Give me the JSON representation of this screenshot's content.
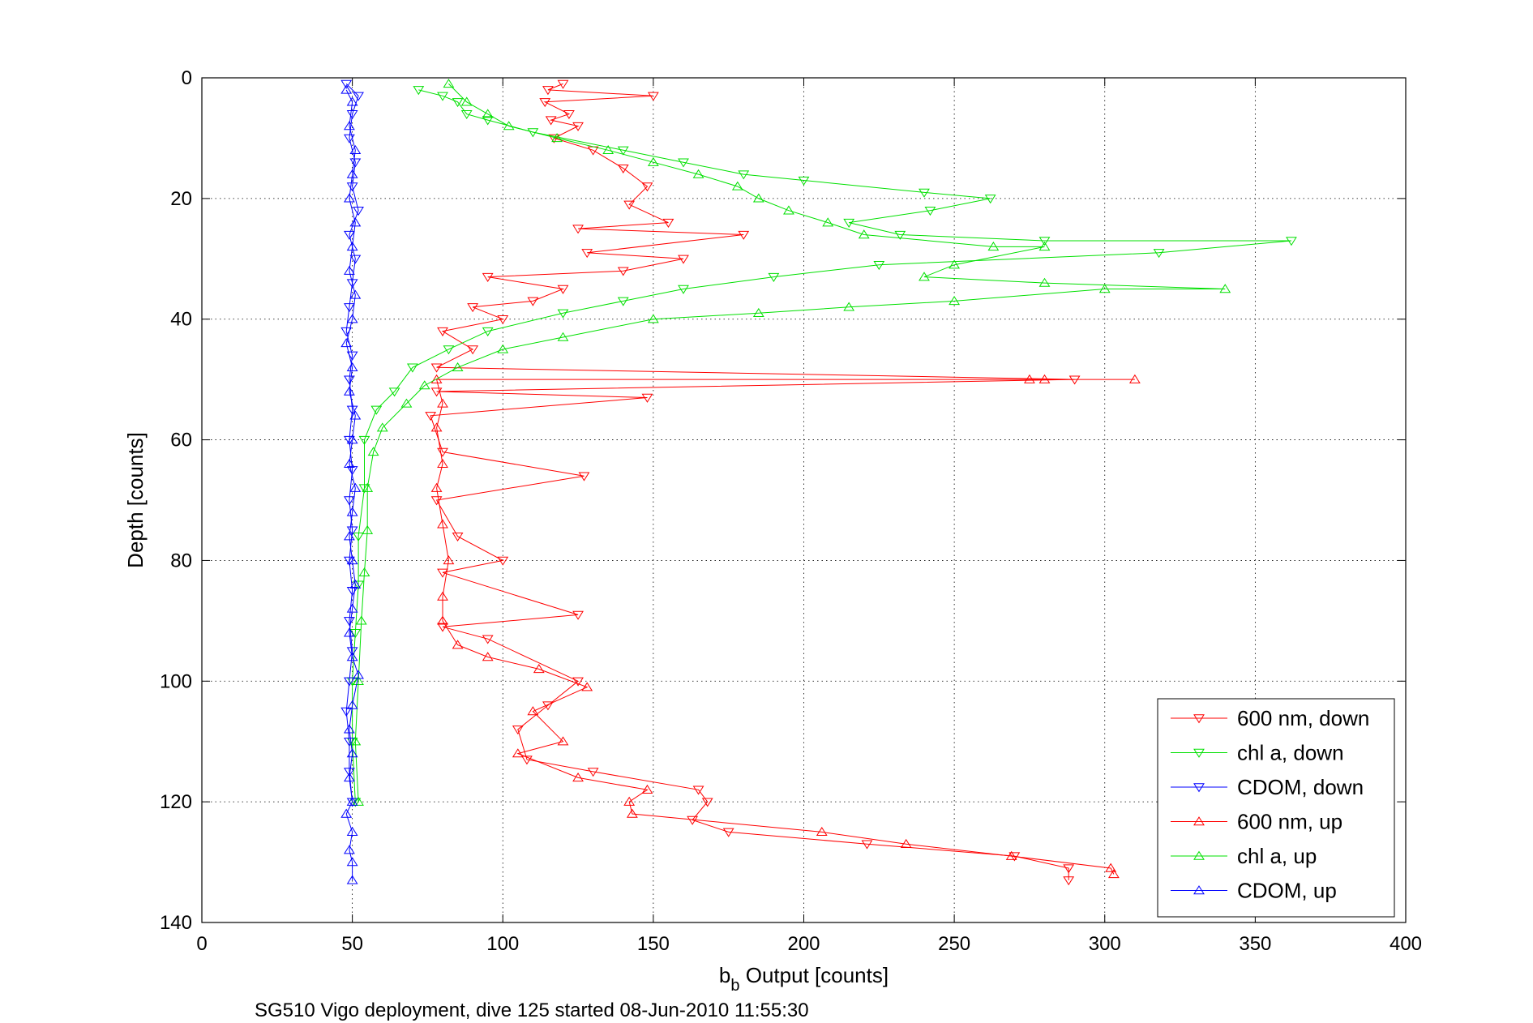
{
  "chart_data": {
    "type": "line",
    "xlabel_main": "b",
    "xlabel_sub": "b",
    "xlabel_rest": " Output [counts]",
    "ylabel": "Depth [counts]",
    "caption": "SG510 Vigo deployment, dive 125 started 08-Jun-2010 11:55:30",
    "xlim": [
      0,
      400
    ],
    "ylim": [
      0,
      140
    ],
    "y_reversed": true,
    "grid": true,
    "x_ticks": [
      0,
      50,
      100,
      150,
      200,
      250,
      300,
      350,
      400
    ],
    "y_ticks": [
      0,
      20,
      40,
      60,
      80,
      100,
      120,
      140
    ],
    "legend_position": "bottom-right",
    "series": [
      {
        "name": "600 nm, down",
        "color": "#ff0000",
        "marker": "down",
        "points": [
          [
            120,
            1
          ],
          [
            115,
            2
          ],
          [
            150,
            3
          ],
          [
            114,
            4
          ],
          [
            122,
            6
          ],
          [
            116,
            7
          ],
          [
            125,
            8
          ],
          [
            117,
            10
          ],
          [
            130,
            12
          ],
          [
            140,
            15
          ],
          [
            148,
            18
          ],
          [
            142,
            21
          ],
          [
            155,
            24
          ],
          [
            125,
            25
          ],
          [
            180,
            26
          ],
          [
            128,
            29
          ],
          [
            160,
            30
          ],
          [
            140,
            32
          ],
          [
            95,
            33
          ],
          [
            120,
            35
          ],
          [
            110,
            37
          ],
          [
            90,
            38
          ],
          [
            100,
            40
          ],
          [
            80,
            42
          ],
          [
            90,
            45
          ],
          [
            78,
            48
          ],
          [
            290,
            50
          ],
          [
            78,
            52
          ],
          [
            148,
            53
          ],
          [
            76,
            56
          ],
          [
            80,
            62
          ],
          [
            127,
            66
          ],
          [
            78,
            70
          ],
          [
            85,
            76
          ],
          [
            100,
            80
          ],
          [
            80,
            82
          ],
          [
            125,
            89
          ],
          [
            80,
            91
          ],
          [
            95,
            93
          ],
          [
            125,
            100
          ],
          [
            115,
            104
          ],
          [
            105,
            108
          ],
          [
            108,
            113
          ],
          [
            130,
            115
          ],
          [
            165,
            118
          ],
          [
            168,
            120
          ],
          [
            163,
            123
          ],
          [
            175,
            125
          ],
          [
            221,
            127
          ],
          [
            270,
            129
          ],
          [
            288,
            131
          ],
          [
            288,
            133
          ]
        ]
      },
      {
        "name": "chl a, down",
        "color": "#00e000",
        "marker": "down",
        "points": [
          [
            72,
            2
          ],
          [
            80,
            3
          ],
          [
            85,
            4
          ],
          [
            88,
            6
          ],
          [
            95,
            7
          ],
          [
            110,
            9
          ],
          [
            140,
            12
          ],
          [
            160,
            14
          ],
          [
            180,
            16
          ],
          [
            200,
            17
          ],
          [
            240,
            19
          ],
          [
            262,
            20
          ],
          [
            242,
            22
          ],
          [
            215,
            24
          ],
          [
            232,
            26
          ],
          [
            280,
            27
          ],
          [
            362,
            27
          ],
          [
            318,
            29
          ],
          [
            225,
            31
          ],
          [
            190,
            33
          ],
          [
            160,
            35
          ],
          [
            140,
            37
          ],
          [
            120,
            39
          ],
          [
            95,
            42
          ],
          [
            82,
            45
          ],
          [
            70,
            48
          ],
          [
            64,
            52
          ],
          [
            58,
            55
          ],
          [
            54,
            60
          ],
          [
            54,
            68
          ],
          [
            52,
            76
          ],
          [
            52,
            84
          ],
          [
            51,
            92
          ],
          [
            50,
            100
          ],
          [
            50,
            110
          ],
          [
            51,
            120
          ]
        ]
      },
      {
        "name": "CDOM, down",
        "color": "#0000ff",
        "marker": "down",
        "points": [
          [
            48,
            1
          ],
          [
            52,
            3
          ],
          [
            50,
            6
          ],
          [
            49,
            10
          ],
          [
            51,
            14
          ],
          [
            50,
            18
          ],
          [
            52,
            22
          ],
          [
            49,
            26
          ],
          [
            51,
            30
          ],
          [
            50,
            34
          ],
          [
            49,
            38
          ],
          [
            48,
            42
          ],
          [
            50,
            46
          ],
          [
            49,
            50
          ],
          [
            50,
            55
          ],
          [
            49,
            60
          ],
          [
            50,
            65
          ],
          [
            49,
            70
          ],
          [
            50,
            75
          ],
          [
            49,
            80
          ],
          [
            50,
            85
          ],
          [
            49,
            90
          ],
          [
            50,
            95
          ],
          [
            49,
            100
          ],
          [
            48,
            105
          ],
          [
            49,
            110
          ],
          [
            49,
            115
          ],
          [
            50,
            120
          ]
        ]
      },
      {
        "name": "600 nm, up",
        "color": "#ff0000",
        "marker": "up",
        "points": [
          [
            310,
            50
          ],
          [
            275,
            50
          ],
          [
            280,
            50
          ],
          [
            78,
            50
          ],
          [
            80,
            54
          ],
          [
            78,
            58
          ],
          [
            80,
            64
          ],
          [
            78,
            68
          ],
          [
            80,
            74
          ],
          [
            82,
            80
          ],
          [
            80,
            86
          ],
          [
            80,
            90
          ],
          [
            85,
            94
          ],
          [
            95,
            96
          ],
          [
            112,
            98
          ],
          [
            128,
            101
          ],
          [
            110,
            105
          ],
          [
            120,
            110
          ],
          [
            105,
            112
          ],
          [
            125,
            116
          ],
          [
            148,
            118
          ],
          [
            142,
            120
          ],
          [
            143,
            122
          ],
          [
            206,
            125
          ],
          [
            234,
            127
          ],
          [
            269,
            129
          ],
          [
            302,
            131
          ],
          [
            303,
            132
          ]
        ]
      },
      {
        "name": "chl a, up",
        "color": "#00e000",
        "marker": "up",
        "points": [
          [
            82,
            1
          ],
          [
            88,
            4
          ],
          [
            95,
            6
          ],
          [
            102,
            8
          ],
          [
            118,
            10
          ],
          [
            135,
            12
          ],
          [
            150,
            14
          ],
          [
            165,
            16
          ],
          [
            178,
            18
          ],
          [
            185,
            20
          ],
          [
            195,
            22
          ],
          [
            208,
            24
          ],
          [
            220,
            26
          ],
          [
            263,
            28
          ],
          [
            280,
            28
          ],
          [
            250,
            31
          ],
          [
            240,
            33
          ],
          [
            280,
            34
          ],
          [
            340,
            35
          ],
          [
            300,
            35
          ],
          [
            250,
            37
          ],
          [
            215,
            38
          ],
          [
            185,
            39
          ],
          [
            150,
            40
          ],
          [
            120,
            43
          ],
          [
            100,
            45
          ],
          [
            85,
            48
          ],
          [
            74,
            51
          ],
          [
            68,
            54
          ],
          [
            60,
            58
          ],
          [
            57,
            62
          ],
          [
            55,
            68
          ],
          [
            55,
            75
          ],
          [
            54,
            82
          ],
          [
            53,
            90
          ],
          [
            52,
            100
          ],
          [
            51,
            110
          ],
          [
            52,
            120
          ]
        ]
      },
      {
        "name": "CDOM, up",
        "color": "#0000ff",
        "marker": "up",
        "points": [
          [
            48,
            2
          ],
          [
            50,
            4
          ],
          [
            49,
            8
          ],
          [
            51,
            12
          ],
          [
            50,
            16
          ],
          [
            49,
            20
          ],
          [
            51,
            24
          ],
          [
            50,
            28
          ],
          [
            49,
            32
          ],
          [
            51,
            36
          ],
          [
            50,
            40
          ],
          [
            48,
            44
          ],
          [
            50,
            48
          ],
          [
            49,
            52
          ],
          [
            51,
            56
          ],
          [
            50,
            60
          ],
          [
            49,
            64
          ],
          [
            51,
            68
          ],
          [
            50,
            72
          ],
          [
            49,
            76
          ],
          [
            50,
            80
          ],
          [
            51,
            84
          ],
          [
            50,
            88
          ],
          [
            49,
            92
          ],
          [
            50,
            96
          ],
          [
            52,
            99
          ],
          [
            50,
            104
          ],
          [
            49,
            108
          ],
          [
            50,
            112
          ],
          [
            49,
            116
          ],
          [
            50,
            120
          ],
          [
            48,
            122
          ],
          [
            50,
            125
          ],
          [
            49,
            128
          ],
          [
            50,
            130
          ],
          [
            50,
            133
          ]
        ]
      }
    ]
  }
}
